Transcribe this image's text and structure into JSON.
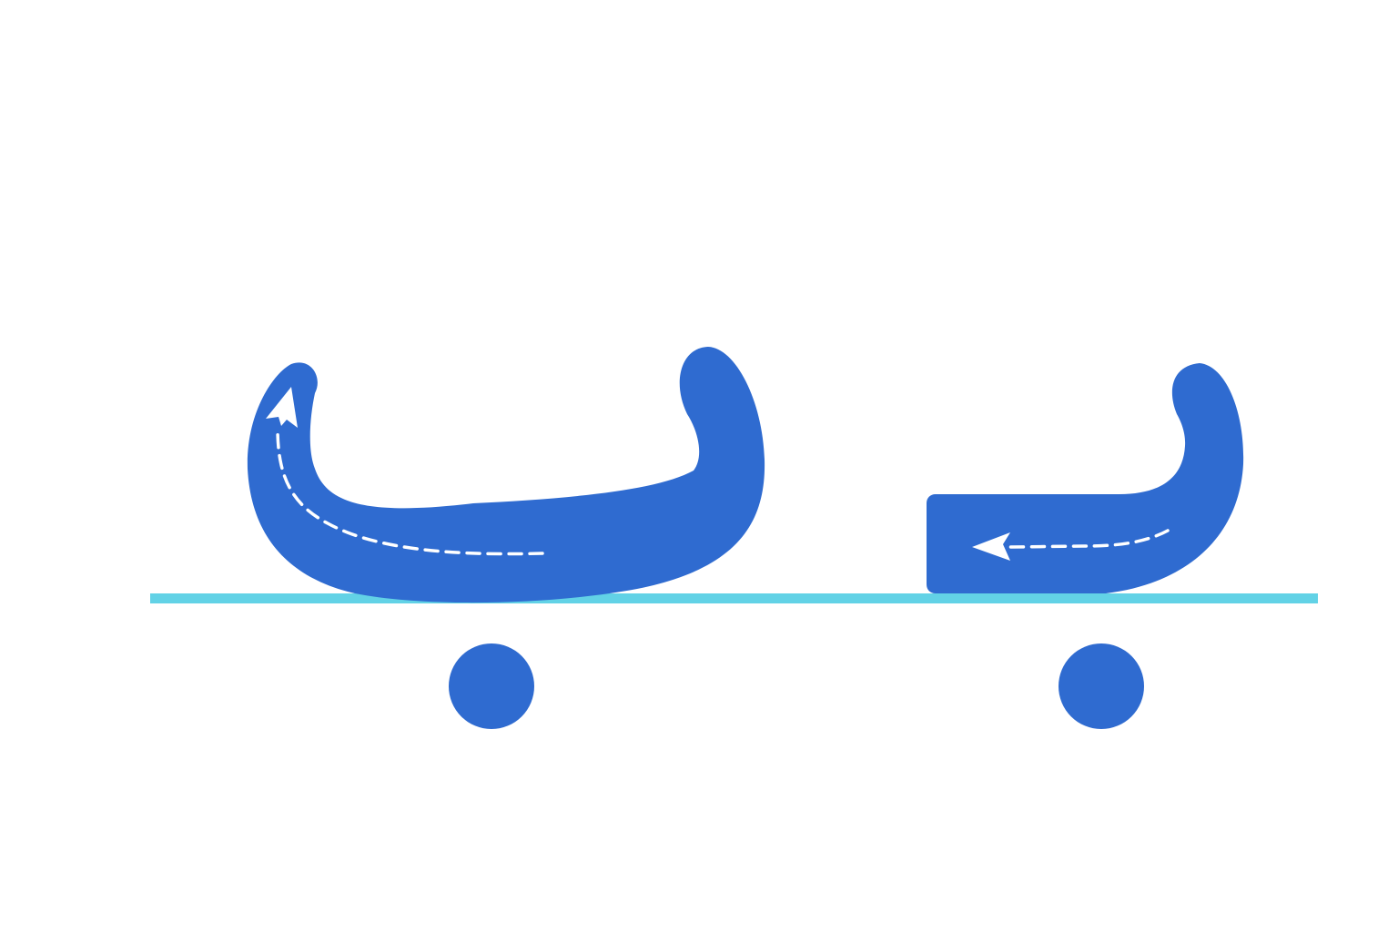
{
  "diagram": {
    "colors": {
      "letter": "#2F6BD0",
      "baseline": "#62D2E6",
      "guide": "#FFFFFF",
      "background": "#FFFFFF"
    },
    "forms": [
      {
        "id": "isolated-ba",
        "shape": "isolated-letter-body",
        "has_dot_below": true,
        "stroke_direction": "right-to-left-then-up"
      },
      {
        "id": "initial-ba",
        "shape": "initial-letter-body",
        "has_dot_below": true,
        "stroke_direction": "right-to-left"
      }
    ]
  }
}
